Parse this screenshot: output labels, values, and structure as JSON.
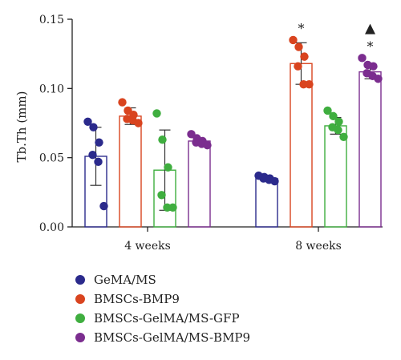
{
  "chart_data": {
    "type": "bar",
    "ylabel": "Tb.Th (mm)",
    "ylim": [
      0,
      0.15
    ],
    "yticks": [
      "0.00",
      "0.05",
      "0.10",
      "0.15"
    ],
    "categories": [
      "4 weeks",
      "8 weeks"
    ],
    "grid": false,
    "legend_position": "bottom-left",
    "series": [
      {
        "name": "GeMA/MS",
        "color": "#2b2a8c",
        "values": [
          0.051,
          0.035
        ],
        "errors": [
          0.021,
          0.002
        ],
        "points": [
          [
            0.076,
            0.072,
            0.061,
            0.052,
            0.047,
            0.015
          ],
          [
            0.037,
            0.036,
            0.035,
            0.035,
            0.034,
            0.033
          ]
        ]
      },
      {
        "name": "BMSCs-BMP9",
        "color": "#d9441f",
        "values": [
          0.08,
          0.118
        ],
        "errors": [
          0.006,
          0.015
        ],
        "points": [
          [
            0.09,
            0.084,
            0.081,
            0.078,
            0.077,
            0.075
          ],
          [
            0.135,
            0.13,
            0.123,
            0.116,
            0.103,
            0.103
          ]
        ]
      },
      {
        "name": "BMSCs-GelMA/MS-GFP",
        "color": "#3fae3f",
        "values": [
          0.041,
          0.073
        ],
        "errors": [
          0.029,
          0.006
        ],
        "points": [
          [
            0.082,
            0.063,
            0.043,
            0.023,
            0.014,
            0.014
          ],
          [
            0.084,
            0.08,
            0.076,
            0.072,
            0.07,
            0.065
          ]
        ]
      },
      {
        "name": "BMSCs-GelMA/MS-BMP9",
        "color": "#7b2d8f",
        "values": [
          0.062,
          0.112
        ],
        "errors": [
          0.002,
          0.005
        ],
        "points": [
          [
            0.067,
            0.064,
            0.062,
            0.061,
            0.06,
            0.059
          ],
          [
            0.122,
            0.117,
            0.116,
            0.111,
            0.109,
            0.107
          ]
        ]
      }
    ],
    "annotations": [
      {
        "group": 1,
        "series": 1,
        "text": "*"
      },
      {
        "group": 1,
        "series": 3,
        "text": "*"
      },
      {
        "group": 1,
        "series": 3,
        "text": "▲"
      }
    ]
  }
}
